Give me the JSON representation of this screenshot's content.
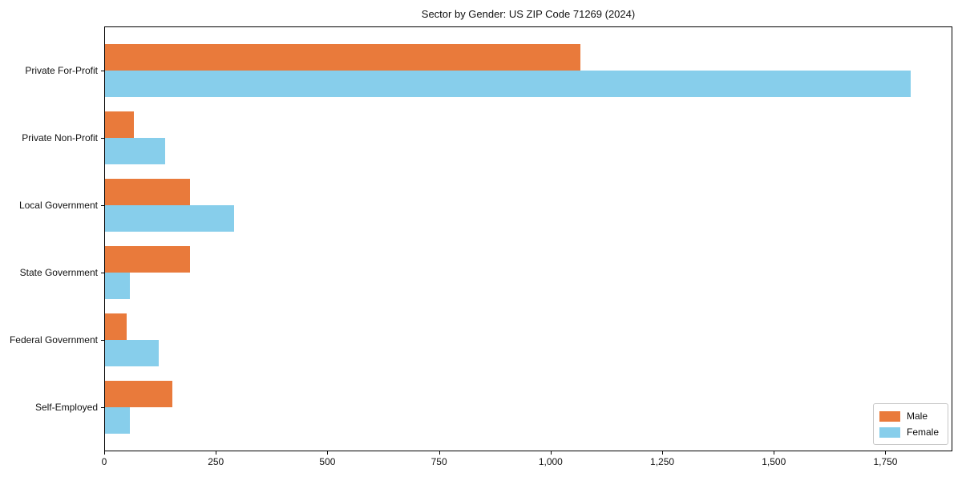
{
  "chart_data": {
    "type": "bar",
    "orientation": "horizontal",
    "title": "Sector by Gender: US ZIP Code 71269 (2024)",
    "categories": [
      "Private For-Profit",
      "Private Non-Profit",
      "Local Government",
      "State Government",
      "Federal Government",
      "Self-Employed"
    ],
    "series": [
      {
        "name": "Male",
        "color": "#e97a3b",
        "values": [
          1065,
          65,
          190,
          190,
          48,
          150
        ]
      },
      {
        "name": "Female",
        "color": "#87ceeb",
        "values": [
          1805,
          135,
          290,
          55,
          120,
          55
        ]
      }
    ],
    "xlim": [
      0,
      1900
    ],
    "xticks": [
      0,
      250,
      500,
      750,
      1000,
      1250,
      1500,
      1750
    ],
    "xtick_labels": [
      "0",
      "250",
      "500",
      "750",
      "1,000",
      "1,250",
      "1,500",
      "1,750"
    ],
    "xlabel": "",
    "ylabel": "",
    "grid": false,
    "legend_position": "lower right"
  }
}
